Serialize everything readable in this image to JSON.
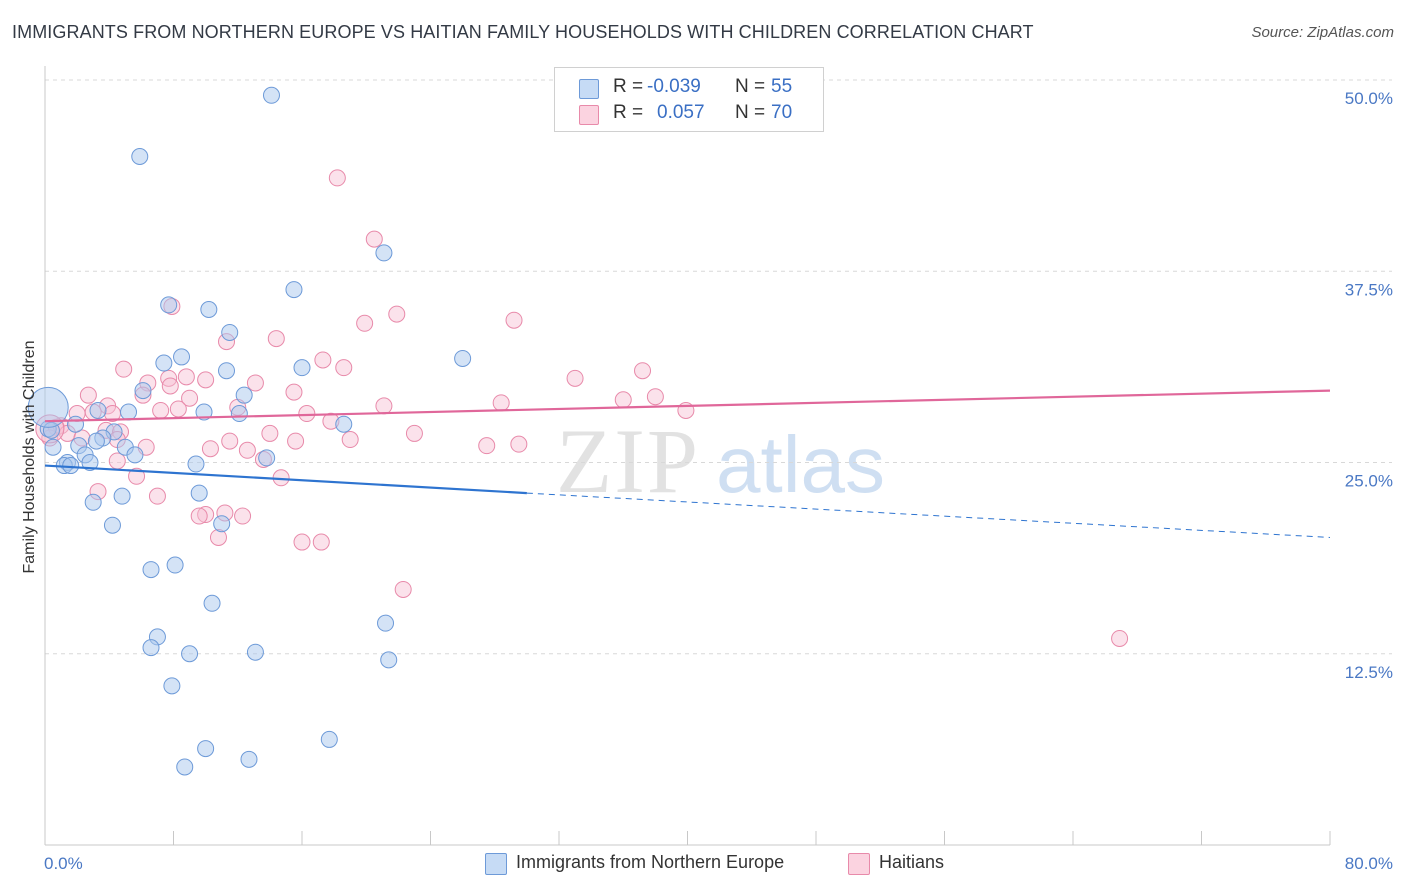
{
  "title": "IMMIGRANTS FROM NORTHERN EUROPE VS HAITIAN FAMILY HOUSEHOLDS WITH CHILDREN CORRELATION CHART",
  "source": "Source: ZipAtlas.com",
  "legend": {
    "rows": [
      {
        "r_label": "R =",
        "r_value": "-0.039",
        "n_label": "N =",
        "n_value": "55"
      },
      {
        "r_label": "R =",
        "r_value": "0.057",
        "n_label": "N =",
        "n_value": "70"
      }
    ]
  },
  "bottom_legend": {
    "series1": "Immigrants from Northern Europe",
    "series2": "Haitians"
  },
  "watermark": {
    "zip": "ZIP",
    "atlas": "atlas"
  },
  "colors": {
    "blue_fill": "#aac8ee",
    "blue_stroke": "#6d9ad8",
    "blue_line": "#2e74d0",
    "pink_fill": "#f7bfd2",
    "pink_stroke": "#e88aaa",
    "pink_line": "#e0679a",
    "tick": "#4a78c4"
  },
  "chart_data": {
    "type": "scatter",
    "title": "IMMIGRANTS FROM NORTHERN EUROPE VS HAITIAN FAMILY HOUSEHOLDS WITH CHILDREN CORRELATION CHART",
    "xlabel": "",
    "ylabel": "Family Households with Children",
    "xlim": [
      0,
      80
    ],
    "ylim": [
      0,
      50
    ],
    "x_tick_labels": [
      "0.0%",
      "80.0%"
    ],
    "y_ticks": [
      12.5,
      25.0,
      37.5,
      50.0
    ],
    "y_tick_labels": [
      "12.5%",
      "25.0%",
      "37.5%",
      "50.0%"
    ],
    "grid": true,
    "series": [
      {
        "name": "Immigrants from Northern Europe",
        "R": -0.039,
        "N": 55,
        "trend": {
          "x0": 0,
          "y0": 24.8,
          "x1": 30,
          "y1": 23.0,
          "dash_to_x": 80,
          "dash_to_y": 20.1
        },
        "points": [
          [
            14.1,
            49.0
          ],
          [
            5.9,
            45.0
          ],
          [
            21.1,
            38.7
          ],
          [
            15.5,
            36.3
          ],
          [
            7.7,
            35.3
          ],
          [
            10.2,
            35.0
          ],
          [
            11.5,
            33.5
          ],
          [
            8.5,
            31.9
          ],
          [
            26.0,
            31.8
          ],
          [
            7.4,
            31.5
          ],
          [
            16.0,
            31.2
          ],
          [
            11.3,
            31.0
          ],
          [
            6.1,
            29.7
          ],
          [
            12.4,
            29.4
          ],
          [
            3.3,
            28.4
          ],
          [
            5.2,
            28.3
          ],
          [
            9.9,
            28.3
          ],
          [
            12.1,
            28.2
          ],
          [
            1.9,
            27.5
          ],
          [
            18.6,
            27.5
          ],
          [
            0.2,
            27.2
          ],
          [
            4.3,
            27.0
          ],
          [
            0.4,
            27.1
          ],
          [
            3.6,
            26.6
          ],
          [
            3.2,
            26.4
          ],
          [
            2.1,
            26.1
          ],
          [
            5.0,
            26.0
          ],
          [
            0.5,
            26.0
          ],
          [
            2.5,
            25.5
          ],
          [
            5.6,
            25.5
          ],
          [
            13.8,
            25.3
          ],
          [
            1.4,
            25.0
          ],
          [
            2.8,
            25.0
          ],
          [
            1.2,
            24.8
          ],
          [
            1.6,
            24.8
          ],
          [
            9.4,
            24.9
          ],
          [
            4.8,
            22.8
          ],
          [
            9.6,
            23.0
          ],
          [
            3.0,
            22.4
          ],
          [
            11.0,
            21.0
          ],
          [
            4.2,
            20.9
          ],
          [
            8.1,
            18.3
          ],
          [
            6.6,
            18.0
          ],
          [
            10.4,
            15.8
          ],
          [
            21.2,
            14.5
          ],
          [
            7.0,
            13.6
          ],
          [
            6.6,
            12.9
          ],
          [
            9.0,
            12.5
          ],
          [
            13.1,
            12.6
          ],
          [
            21.4,
            12.1
          ],
          [
            7.9,
            10.4
          ],
          [
            17.7,
            6.9
          ],
          [
            10.0,
            6.3
          ],
          [
            12.7,
            5.6
          ],
          [
            8.7,
            5.1
          ]
        ]
      },
      {
        "name": "Haitians",
        "R": 0.057,
        "N": 70,
        "trend": {
          "x0": 0,
          "y0": 27.7,
          "x1": 80,
          "y1": 29.7
        },
        "points": [
          [
            18.2,
            43.6
          ],
          [
            20.5,
            39.6
          ],
          [
            21.9,
            34.7
          ],
          [
            7.9,
            35.2
          ],
          [
            29.2,
            34.3
          ],
          [
            19.9,
            34.1
          ],
          [
            14.4,
            33.1
          ],
          [
            11.3,
            32.9
          ],
          [
            17.3,
            31.7
          ],
          [
            18.6,
            31.2
          ],
          [
            4.9,
            31.1
          ],
          [
            8.8,
            30.6
          ],
          [
            7.7,
            30.5
          ],
          [
            33.0,
            30.5
          ],
          [
            37.2,
            31.0
          ],
          [
            10.0,
            30.4
          ],
          [
            6.4,
            30.2
          ],
          [
            13.1,
            30.2
          ],
          [
            7.8,
            30.0
          ],
          [
            15.5,
            29.6
          ],
          [
            2.7,
            29.4
          ],
          [
            6.1,
            29.4
          ],
          [
            9.0,
            29.2
          ],
          [
            36.0,
            29.1
          ],
          [
            38.0,
            29.3
          ],
          [
            28.4,
            28.9
          ],
          [
            21.1,
            28.7
          ],
          [
            3.9,
            28.7
          ],
          [
            12.0,
            28.6
          ],
          [
            7.2,
            28.4
          ],
          [
            8.3,
            28.5
          ],
          [
            39.9,
            28.4
          ],
          [
            2.0,
            28.2
          ],
          [
            3.0,
            28.3
          ],
          [
            4.2,
            28.2
          ],
          [
            16.3,
            28.2
          ],
          [
            17.8,
            27.7
          ],
          [
            0.7,
            27.3
          ],
          [
            1.0,
            27.4
          ],
          [
            1.4,
            26.9
          ],
          [
            3.8,
            27.1
          ],
          [
            4.7,
            27.0
          ],
          [
            14.0,
            26.9
          ],
          [
            23.0,
            26.9
          ],
          [
            0.3,
            26.6
          ],
          [
            2.3,
            26.6
          ],
          [
            4.5,
            26.5
          ],
          [
            11.5,
            26.4
          ],
          [
            19.0,
            26.5
          ],
          [
            15.6,
            26.4
          ],
          [
            29.5,
            26.2
          ],
          [
            6.3,
            26.0
          ],
          [
            27.5,
            26.1
          ],
          [
            10.3,
            25.9
          ],
          [
            12.6,
            25.8
          ],
          [
            13.6,
            25.2
          ],
          [
            5.7,
            24.1
          ],
          [
            14.7,
            24.0
          ],
          [
            3.3,
            23.1
          ],
          [
            7.0,
            22.8
          ],
          [
            11.2,
            21.7
          ],
          [
            10.0,
            21.6
          ],
          [
            9.6,
            21.5
          ],
          [
            12.3,
            21.5
          ],
          [
            10.8,
            20.1
          ],
          [
            16.0,
            19.8
          ],
          [
            17.2,
            19.8
          ],
          [
            22.3,
            16.7
          ],
          [
            66.9,
            13.5
          ],
          [
            4.5,
            25.1
          ]
        ]
      }
    ]
  }
}
